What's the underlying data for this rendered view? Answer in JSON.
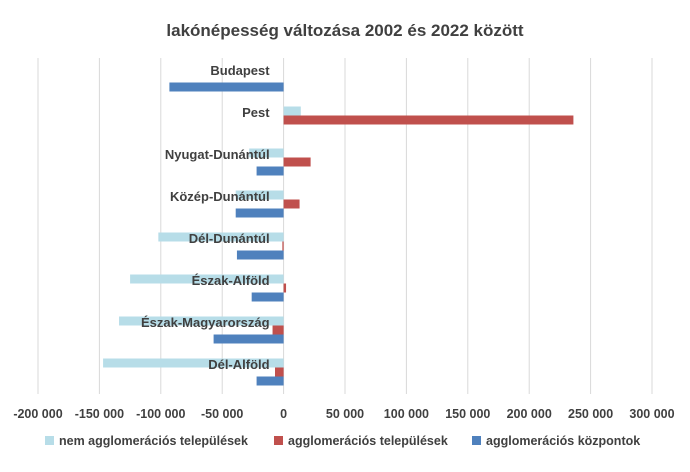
{
  "chart_data": {
    "type": "bar",
    "orientation": "horizontal",
    "title": "lakónépesség változása 2002 és 2022 között",
    "xlabel": "",
    "ylabel": "",
    "xlim": [
      -200000,
      300000
    ],
    "x_ticks": [
      -200000,
      -150000,
      -100000,
      -50000,
      0,
      50000,
      100000,
      150000,
      200000,
      250000,
      300000
    ],
    "x_tick_labels": [
      "-200 000",
      "-150 000",
      "-100 000",
      "-50 000",
      "0",
      "50 000",
      "100 000",
      "150 000",
      "200 000",
      "250 000",
      "300 000"
    ],
    "grid": "vertical",
    "legend_position": "bottom",
    "categories": [
      "Budapest",
      "Pest",
      "Nyugat-Dunántúl",
      "Közép-Dunántúl",
      "Dél-Dunántúl",
      "Észak-Alföld",
      "Észak-Magyarország",
      "Dél-Alföld"
    ],
    "series": [
      {
        "name": "nem agglomerációs települések",
        "color": "#b7dde8",
        "values": [
          0,
          14000,
          -28000,
          -39000,
          -102000,
          -125000,
          -134000,
          -147000
        ]
      },
      {
        "name": "agglomerációs települések",
        "color": "#c0504d",
        "values": [
          0,
          236000,
          22000,
          13000,
          -1000,
          2000,
          -9000,
          -7000
        ]
      },
      {
        "name": "agglomerációs központok",
        "color": "#4f81bd",
        "values": [
          -93000,
          0,
          -22000,
          -39000,
          -38000,
          -26000,
          -57000,
          -22000
        ]
      }
    ]
  }
}
